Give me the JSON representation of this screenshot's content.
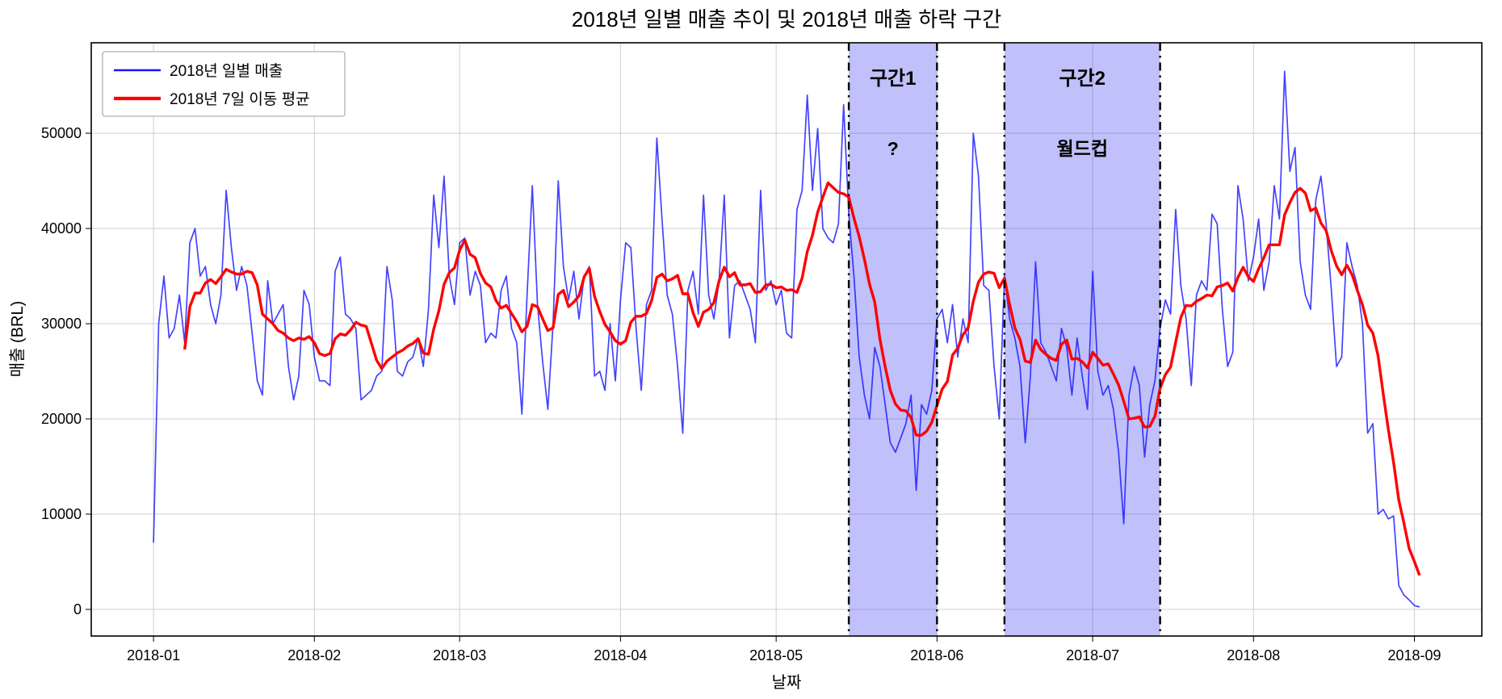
{
  "title": "2018년 일별 매출 추이 및 2018년 매출 하락 구간",
  "axes": {
    "xlabel": "날짜",
    "ylabel": "매출 (BRL)"
  },
  "legend": {
    "items": [
      {
        "label": "2018년 일별 매출",
        "color": "#1414ff"
      },
      {
        "label": "2018년 7일 이동 평균",
        "color": "#ff0000"
      }
    ]
  },
  "regions": [
    {
      "label": "구간1",
      "sublabel": "?",
      "start": "2018-05-15",
      "end": "2018-06-01",
      "fill": "rgba(60,60,240,0.32)",
      "label_color": "#ffff4f"
    },
    {
      "label": "구간2",
      "sublabel": "월드컵",
      "start": "2018-06-14",
      "end": "2018-07-14",
      "fill": "rgba(60,60,240,0.32)",
      "label_color": "#ffff4f"
    }
  ],
  "chart_data": {
    "type": "line",
    "start_date": "2018-01-01",
    "x_tick_labels": [
      "2018-01",
      "2018-02",
      "2018-03",
      "2018-04",
      "2018-05",
      "2018-06",
      "2018-07",
      "2018-08",
      "2018-09"
    ],
    "y_ticks": [
      0,
      10000,
      20000,
      30000,
      40000,
      50000
    ],
    "ylim": [
      -2800,
      59500
    ],
    "xlim_days": [
      -12,
      256
    ],
    "grid": true,
    "legend_position": "upper left",
    "series": [
      {
        "name": "2018년 일별 매출",
        "color": "#1414ff",
        "values": [
          7000,
          30000,
          35000,
          28500,
          29500,
          33000,
          28000,
          38500,
          40000,
          35000,
          36000,
          32000,
          30000,
          33000,
          44000,
          38000,
          33500,
          36000,
          34000,
          29000,
          24000,
          22500,
          34500,
          30000,
          31000,
          32000,
          25500,
          22000,
          24500,
          33500,
          32000,
          26500,
          24000,
          24000,
          23500,
          35500,
          37000,
          31000,
          30500,
          29500,
          22000,
          22500,
          23000,
          24500,
          25000,
          36000,
          32500,
          25000,
          24500,
          26000,
          26500,
          28500,
          25500,
          31500,
          43500,
          38000,
          45500,
          35000,
          32000,
          38500,
          39000,
          33000,
          35500,
          34000,
          28000,
          29000,
          28500,
          33500,
          35000,
          29500,
          28000,
          20500,
          33000,
          44500,
          32000,
          26000,
          21000,
          30000,
          45000,
          36000,
          32500,
          35500,
          30500,
          35000,
          36000,
          24500,
          25000,
          23000,
          30000,
          24000,
          32500,
          38500,
          38000,
          29500,
          23000,
          32000,
          33500,
          49500,
          41000,
          33000,
          31000,
          25500,
          18500,
          33500,
          35500,
          31000,
          43500,
          33000,
          30500,
          34500,
          43500,
          28500,
          34000,
          34500,
          33000,
          31500,
          28000,
          44000,
          33500,
          34500,
          32000,
          33500,
          29000,
          28500,
          42000,
          44000,
          54000,
          44000,
          50500,
          40000,
          39000,
          38500,
          40500,
          53000,
          41500,
          35000,
          26500,
          22500,
          20000,
          27500,
          25500,
          21500,
          17500,
          16500,
          18000,
          19500,
          22500,
          12500,
          21500,
          20500,
          23000,
          30500,
          31500,
          28000,
          32000,
          26500,
          30500,
          28000,
          50000,
          45500,
          34000,
          33500,
          25500,
          20000,
          35000,
          30500,
          28500,
          25500,
          17500,
          24500,
          36500,
          28000,
          27000,
          25500,
          24000,
          29500,
          27500,
          22500,
          28500,
          24500,
          21000,
          35500,
          25000,
          22500,
          23500,
          21000,
          16500,
          9000,
          22500,
          25500,
          23500,
          16000,
          21500,
          24000,
          29500,
          32500,
          31000,
          42000,
          34000,
          30500,
          23500,
          33000,
          34500,
          33500,
          41500,
          40500,
          31500,
          25500,
          27000,
          44500,
          41000,
          34500,
          37000,
          41000,
          33500,
          36500,
          44500,
          41000,
          56500,
          46000,
          48500,
          36500,
          33000,
          31500,
          43000,
          45500,
          40500,
          33500,
          25500,
          26500,
          38500,
          36000,
          34000,
          30000,
          18500,
          19500,
          10000,
          10500,
          9500,
          9800,
          2500,
          1500,
          1000,
          400,
          250
        ]
      },
      {
        "name": "2018년 7일 이동 평균",
        "color": "#ff0000",
        "derived": "rolling_mean_of_daily",
        "window": 7
      }
    ]
  }
}
